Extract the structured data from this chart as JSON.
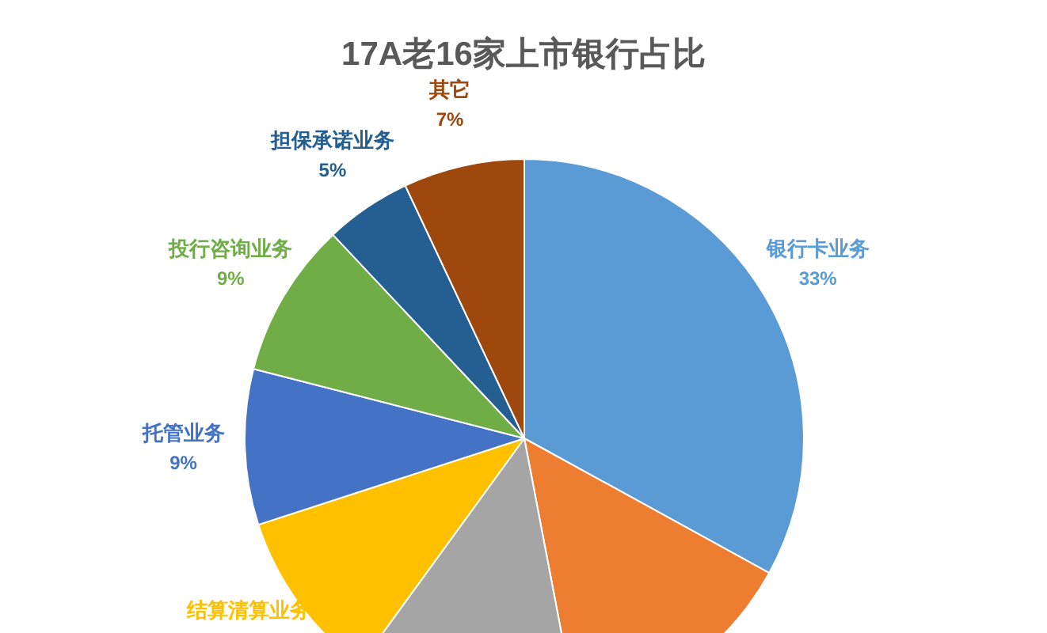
{
  "chart_data": {
    "type": "pie",
    "title": "17A老16家上市银行占比",
    "categories": [
      "银行卡业务",
      null,
      null,
      "结算清算业务",
      "托管业务",
      "投行咨询业务",
      "担保承诺业务",
      "其它"
    ],
    "values": [
      33,
      14,
      13,
      10,
      9,
      9,
      5,
      7
    ],
    "colors": [
      "#5b9bd5",
      "#ed7d31",
      "#a5a5a5",
      "#ffc000",
      "#4472c4",
      "#70ad47",
      "#255e91",
      "#9e480e"
    ],
    "value_labels": [
      "33%",
      null,
      null,
      null,
      "9%",
      "9%",
      "5%",
      "7%"
    ],
    "legend": false
  }
}
